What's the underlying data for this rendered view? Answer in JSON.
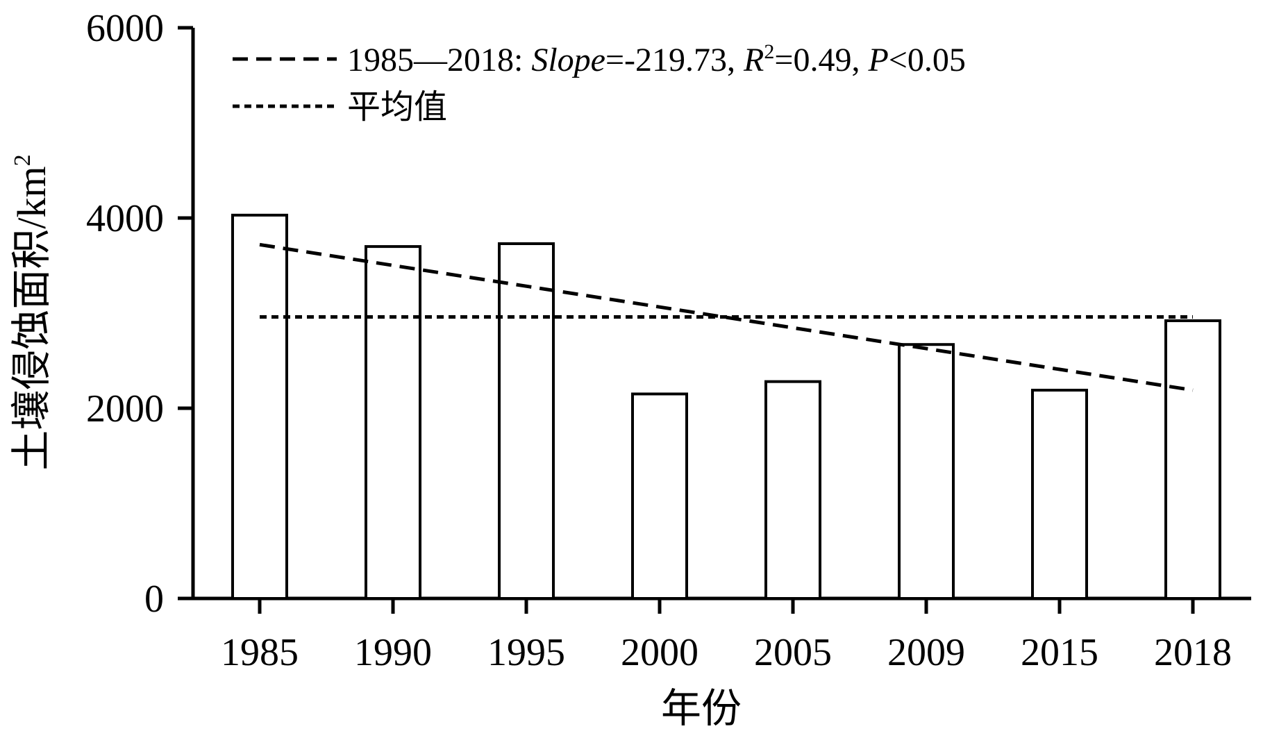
{
  "chart_data": {
    "type": "bar",
    "categories": [
      "1985",
      "1990",
      "1995",
      "2000",
      "2005",
      "2009",
      "2015",
      "2018"
    ],
    "values": [
      4030,
      3700,
      3730,
      2150,
      2280,
      2670,
      2190,
      2920
    ],
    "xlabel": "年份",
    "ylabel": "土壤侵蚀面积/km",
    "ylabel_sup": "2",
    "ylim": [
      0,
      6000
    ],
    "yticks": [
      "0",
      "2000",
      "4000",
      "6000"
    ],
    "grid": false,
    "legend_position": "top-left",
    "series": [
      {
        "type": "bar",
        "values": [
          4030,
          3700,
          3730,
          2150,
          2280,
          2670,
          2190,
          2920
        ],
        "fill": "#ffffff",
        "stroke": "#000000"
      }
    ],
    "trend_line": {
      "label_range": "1985—2018: ",
      "slope_label": "Slope",
      "slope_value": "=-219.73, ",
      "r_label": "R",
      "r_sup": "2",
      "r_value": "=0.49, ",
      "p_label": "P",
      "p_value": "<0.05",
      "start": {
        "x": "1985",
        "y": 3720
      },
      "end": {
        "x": "2018",
        "y": 2190
      },
      "style": "dashed"
    },
    "mean_line": {
      "label": "平均值",
      "value": 2960,
      "from": "1985",
      "to": "2018",
      "style": "dotted"
    }
  }
}
